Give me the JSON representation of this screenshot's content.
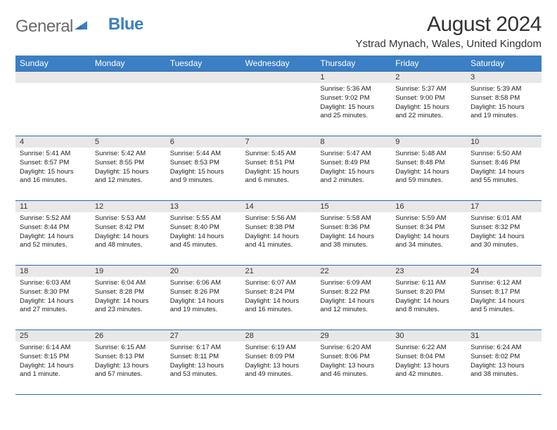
{
  "brand": {
    "part1": "General",
    "part2": "Blue"
  },
  "title": "August 2024",
  "location": "Ystrad Mynach, Wales, United Kingdom",
  "colors": {
    "header_bg": "#3b7fc4",
    "header_text": "#ffffff",
    "border": "#2d6aa8",
    "daynum_bg": "#e8e8e8",
    "text": "#222222",
    "logo_gray": "#6a6a6a",
    "logo_blue": "#3b7fc4",
    "page_bg": "#ffffff"
  },
  "day_headers": [
    "Sunday",
    "Monday",
    "Tuesday",
    "Wednesday",
    "Thursday",
    "Friday",
    "Saturday"
  ],
  "weeks": [
    [
      {
        "num": "",
        "lines": []
      },
      {
        "num": "",
        "lines": []
      },
      {
        "num": "",
        "lines": []
      },
      {
        "num": "",
        "lines": []
      },
      {
        "num": "1",
        "lines": [
          "Sunrise: 5:36 AM",
          "Sunset: 9:02 PM",
          "Daylight: 15 hours",
          "and 25 minutes."
        ]
      },
      {
        "num": "2",
        "lines": [
          "Sunrise: 5:37 AM",
          "Sunset: 9:00 PM",
          "Daylight: 15 hours",
          "and 22 minutes."
        ]
      },
      {
        "num": "3",
        "lines": [
          "Sunrise: 5:39 AM",
          "Sunset: 8:58 PM",
          "Daylight: 15 hours",
          "and 19 minutes."
        ]
      }
    ],
    [
      {
        "num": "4",
        "lines": [
          "Sunrise: 5:41 AM",
          "Sunset: 8:57 PM",
          "Daylight: 15 hours",
          "and 16 minutes."
        ]
      },
      {
        "num": "5",
        "lines": [
          "Sunrise: 5:42 AM",
          "Sunset: 8:55 PM",
          "Daylight: 15 hours",
          "and 12 minutes."
        ]
      },
      {
        "num": "6",
        "lines": [
          "Sunrise: 5:44 AM",
          "Sunset: 8:53 PM",
          "Daylight: 15 hours",
          "and 9 minutes."
        ]
      },
      {
        "num": "7",
        "lines": [
          "Sunrise: 5:45 AM",
          "Sunset: 8:51 PM",
          "Daylight: 15 hours",
          "and 6 minutes."
        ]
      },
      {
        "num": "8",
        "lines": [
          "Sunrise: 5:47 AM",
          "Sunset: 8:49 PM",
          "Daylight: 15 hours",
          "and 2 minutes."
        ]
      },
      {
        "num": "9",
        "lines": [
          "Sunrise: 5:48 AM",
          "Sunset: 8:48 PM",
          "Daylight: 14 hours",
          "and 59 minutes."
        ]
      },
      {
        "num": "10",
        "lines": [
          "Sunrise: 5:50 AM",
          "Sunset: 8:46 PM",
          "Daylight: 14 hours",
          "and 55 minutes."
        ]
      }
    ],
    [
      {
        "num": "11",
        "lines": [
          "Sunrise: 5:52 AM",
          "Sunset: 8:44 PM",
          "Daylight: 14 hours",
          "and 52 minutes."
        ]
      },
      {
        "num": "12",
        "lines": [
          "Sunrise: 5:53 AM",
          "Sunset: 8:42 PM",
          "Daylight: 14 hours",
          "and 48 minutes."
        ]
      },
      {
        "num": "13",
        "lines": [
          "Sunrise: 5:55 AM",
          "Sunset: 8:40 PM",
          "Daylight: 14 hours",
          "and 45 minutes."
        ]
      },
      {
        "num": "14",
        "lines": [
          "Sunrise: 5:56 AM",
          "Sunset: 8:38 PM",
          "Daylight: 14 hours",
          "and 41 minutes."
        ]
      },
      {
        "num": "15",
        "lines": [
          "Sunrise: 5:58 AM",
          "Sunset: 8:36 PM",
          "Daylight: 14 hours",
          "and 38 minutes."
        ]
      },
      {
        "num": "16",
        "lines": [
          "Sunrise: 5:59 AM",
          "Sunset: 8:34 PM",
          "Daylight: 14 hours",
          "and 34 minutes."
        ]
      },
      {
        "num": "17",
        "lines": [
          "Sunrise: 6:01 AM",
          "Sunset: 8:32 PM",
          "Daylight: 14 hours",
          "and 30 minutes."
        ]
      }
    ],
    [
      {
        "num": "18",
        "lines": [
          "Sunrise: 6:03 AM",
          "Sunset: 8:30 PM",
          "Daylight: 14 hours",
          "and 27 minutes."
        ]
      },
      {
        "num": "19",
        "lines": [
          "Sunrise: 6:04 AM",
          "Sunset: 8:28 PM",
          "Daylight: 14 hours",
          "and 23 minutes."
        ]
      },
      {
        "num": "20",
        "lines": [
          "Sunrise: 6:06 AM",
          "Sunset: 8:26 PM",
          "Daylight: 14 hours",
          "and 19 minutes."
        ]
      },
      {
        "num": "21",
        "lines": [
          "Sunrise: 6:07 AM",
          "Sunset: 8:24 PM",
          "Daylight: 14 hours",
          "and 16 minutes."
        ]
      },
      {
        "num": "22",
        "lines": [
          "Sunrise: 6:09 AM",
          "Sunset: 8:22 PM",
          "Daylight: 14 hours",
          "and 12 minutes."
        ]
      },
      {
        "num": "23",
        "lines": [
          "Sunrise: 6:11 AM",
          "Sunset: 8:20 PM",
          "Daylight: 14 hours",
          "and 8 minutes."
        ]
      },
      {
        "num": "24",
        "lines": [
          "Sunrise: 6:12 AM",
          "Sunset: 8:17 PM",
          "Daylight: 14 hours",
          "and 5 minutes."
        ]
      }
    ],
    [
      {
        "num": "25",
        "lines": [
          "Sunrise: 6:14 AM",
          "Sunset: 8:15 PM",
          "Daylight: 14 hours",
          "and 1 minute."
        ]
      },
      {
        "num": "26",
        "lines": [
          "Sunrise: 6:15 AM",
          "Sunset: 8:13 PM",
          "Daylight: 13 hours",
          "and 57 minutes."
        ]
      },
      {
        "num": "27",
        "lines": [
          "Sunrise: 6:17 AM",
          "Sunset: 8:11 PM",
          "Daylight: 13 hours",
          "and 53 minutes."
        ]
      },
      {
        "num": "28",
        "lines": [
          "Sunrise: 6:19 AM",
          "Sunset: 8:09 PM",
          "Daylight: 13 hours",
          "and 49 minutes."
        ]
      },
      {
        "num": "29",
        "lines": [
          "Sunrise: 6:20 AM",
          "Sunset: 8:06 PM",
          "Daylight: 13 hours",
          "and 46 minutes."
        ]
      },
      {
        "num": "30",
        "lines": [
          "Sunrise: 6:22 AM",
          "Sunset: 8:04 PM",
          "Daylight: 13 hours",
          "and 42 minutes."
        ]
      },
      {
        "num": "31",
        "lines": [
          "Sunrise: 6:24 AM",
          "Sunset: 8:02 PM",
          "Daylight: 13 hours",
          "and 38 minutes."
        ]
      }
    ]
  ]
}
